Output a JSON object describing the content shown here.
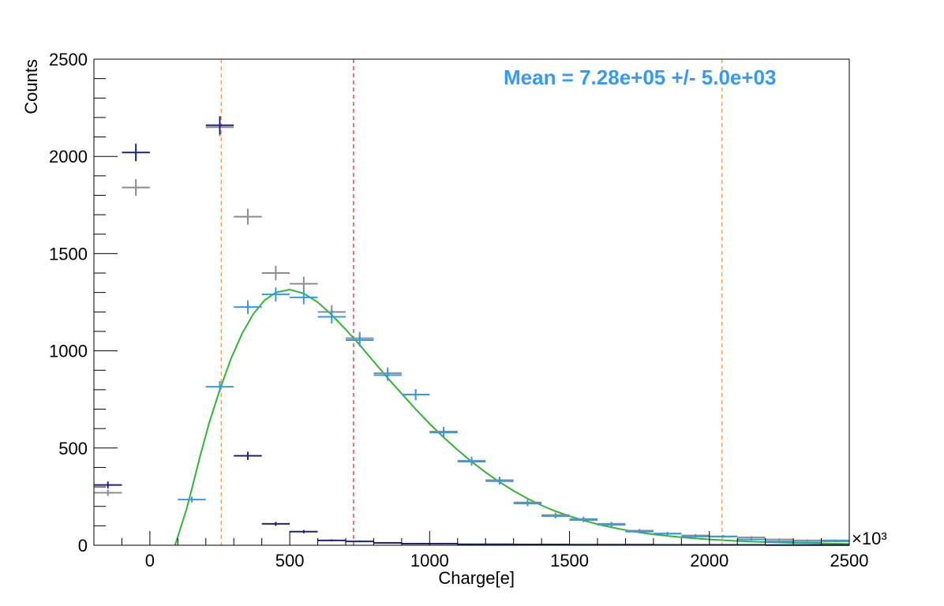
{
  "chart_data": {
    "type": "scatter",
    "title": "",
    "xlabel": "Charge[e]",
    "ylabel": "Counts",
    "x_multiplier_label": "×10³",
    "xlim": [
      -200,
      2500
    ],
    "ylim": [
      0,
      2500
    ],
    "x_ticks": [
      0,
      500,
      1000,
      1500,
      2000,
      2500
    ],
    "y_ticks": [
      0,
      500,
      1000,
      1500,
      2000,
      2500
    ],
    "x_tick_labels": [
      "0",
      "500",
      "1000",
      "1500",
      "2000",
      "2500"
    ],
    "y_tick_labels": [
      "0",
      "500",
      "1000",
      "1500",
      "2000",
      "2500"
    ],
    "bin_width": 100,
    "annotation": {
      "text": "Mean = 7.28e+05 +/- 5.0e+03",
      "color": "#3399ff"
    },
    "vertical_lines": [
      {
        "x": 255,
        "color": "#f5a25d",
        "style": "dashed"
      },
      {
        "x": 728,
        "color": "#e34a4a",
        "style": "dashed"
      },
      {
        "x": 2045,
        "color": "#f5a25d",
        "style": "dashed"
      }
    ],
    "series": [
      {
        "color": "#8c8c8c",
        "x": [
          -150,
          -50,
          50,
          150,
          250,
          350,
          450,
          550,
          650,
          750,
          850,
          950,
          1050,
          1150,
          1250,
          1350,
          1450,
          1550,
          1650,
          1750,
          1850,
          1950,
          2050,
          2150,
          2250,
          2350,
          2450
        ],
        "y": [
          270,
          1840,
          0,
          0,
          2150,
          1690,
          1400,
          1345,
          1200,
          1065,
          885,
          775,
          585,
          435,
          335,
          220,
          155,
          135,
          110,
          75,
          60,
          50,
          45,
          40,
          30,
          25,
          20
        ]
      },
      {
        "color": "#1a237e",
        "x": [
          -150,
          -50,
          250,
          350,
          450,
          550,
          650,
          750,
          850,
          950,
          1050,
          1150,
          1250,
          1350,
          1450,
          1550,
          1650,
          1750,
          1850,
          1950,
          2050,
          2150,
          2250,
          2350,
          2450
        ],
        "y": [
          310,
          2020,
          2160,
          460,
          110,
          70,
          25,
          20,
          12,
          8,
          8,
          5,
          5,
          4,
          4,
          3,
          3,
          3,
          2,
          2,
          2,
          2,
          1,
          1,
          1
        ]
      },
      {
        "color": "#3399ee",
        "x": [
          150,
          250,
          350,
          450,
          550,
          650,
          750,
          850,
          950,
          1050,
          1150,
          1250,
          1350,
          1450,
          1550,
          1650,
          1750,
          1850,
          1950,
          2050,
          2150,
          2250,
          2350,
          2450
        ],
        "y": [
          235,
          815,
          1225,
          1290,
          1275,
          1175,
          1055,
          875,
          775,
          580,
          430,
          330,
          215,
          150,
          130,
          105,
          70,
          60,
          45,
          45,
          30,
          20,
          15,
          25
        ]
      }
    ],
    "fit_curves": [
      {
        "color": "#2eb82e",
        "x": [
          90,
          110,
          130,
          150,
          180,
          210,
          250,
          290,
          330,
          370,
          410,
          450,
          500,
          550,
          600,
          650,
          700,
          750,
          800,
          850,
          900,
          950,
          1000,
          1050,
          1100,
          1150,
          1200,
          1250,
          1300,
          1350,
          1400,
          1450,
          1500,
          1550,
          1600,
          1650,
          1700,
          1750,
          1800,
          1850,
          1900,
          1950,
          2000,
          2050,
          2100,
          2150,
          2200,
          2250,
          2300,
          2350,
          2400,
          2450,
          2500
        ],
        "y": [
          0,
          90,
          180,
          290,
          460,
          620,
          800,
          960,
          1090,
          1190,
          1260,
          1300,
          1315,
          1295,
          1250,
          1185,
          1110,
          1030,
          945,
          860,
          780,
          700,
          625,
          555,
          490,
          430,
          375,
          325,
          280,
          240,
          205,
          175,
          150,
          128,
          108,
          92,
          78,
          66,
          56,
          48,
          41,
          35,
          30,
          26,
          22,
          19,
          16,
          14,
          12,
          11,
          9,
          8,
          7
        ]
      }
    ]
  }
}
